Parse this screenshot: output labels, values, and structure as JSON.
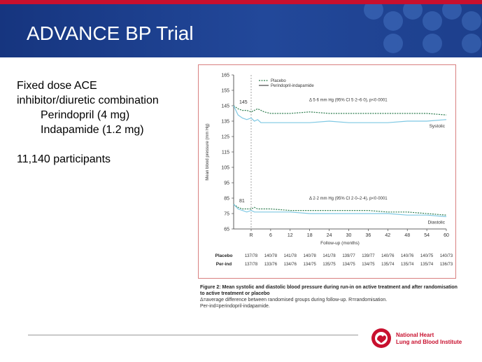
{
  "slide": {
    "title": "ADVANCE BP Trial",
    "bullets": [
      "Fixed dose ACE",
      "inhibitor/diuretic combination",
      "Perindopril (4 mg)",
      "Indapamide (1.2 mg)",
      "11,140 participants"
    ]
  },
  "chart_data": {
    "type": "line",
    "ylabel": "Mean blood pressure (mm Hg)",
    "xlabel": "Follow-up (months)",
    "ylim": [
      65,
      165
    ],
    "yticks": [
      65,
      75,
      85,
      95,
      105,
      115,
      125,
      135,
      145,
      155,
      165
    ],
    "xticks": [
      "R",
      "6",
      "12",
      "18",
      "24",
      "30",
      "36",
      "42",
      "48",
      "54",
      "60"
    ],
    "legend": [
      "Placebo",
      "Perindopril-indapamide"
    ],
    "start_labels": {
      "systolic": "145",
      "diastolic": "81"
    },
    "annotations": {
      "systolic_diff": "Δ 5·6 mm Hg (95% CI 5·2–6·0), p<0·0001",
      "diastolic_diff": "Δ 2·2 mm Hg (95% CI 2·0–2·4), p<0·0001",
      "systolic_label": "Systolic",
      "diastolic_label": "Diastolic"
    },
    "series": [
      {
        "name": "Placebo",
        "group": "Systolic",
        "x": [
          -4,
          -3,
          -2,
          -1,
          0,
          1,
          2,
          3,
          4,
          6,
          12,
          18,
          24,
          30,
          36,
          42,
          48,
          54,
          60
        ],
        "values": [
          145,
          143,
          142,
          142,
          141,
          142,
          143,
          142,
          141,
          140,
          140,
          141,
          140,
          140,
          140,
          140,
          140,
          140,
          139
        ]
      },
      {
        "name": "Perindopril-indapamide",
        "group": "Systolic",
        "x": [
          -4,
          -3,
          -2,
          -1,
          0,
          1,
          2,
          3,
          4,
          6,
          12,
          18,
          24,
          30,
          36,
          42,
          48,
          54,
          60
        ],
        "values": [
          145,
          139,
          137,
          136,
          137,
          135,
          136,
          134,
          134,
          134,
          134,
          134,
          135,
          134,
          134,
          134,
          135,
          135,
          136
        ]
      },
      {
        "name": "Placebo",
        "group": "Diastolic",
        "x": [
          -4,
          -3,
          -2,
          -1,
          0,
          1,
          2,
          3,
          4,
          6,
          12,
          18,
          24,
          30,
          36,
          42,
          48,
          54,
          60
        ],
        "values": [
          81,
          79,
          78,
          78,
          78,
          79,
          78,
          78,
          78,
          78,
          77,
          77,
          77,
          77,
          77,
          76,
          76,
          75,
          74
        ]
      },
      {
        "name": "Perindopril-indapamide",
        "group": "Diastolic",
        "x": [
          -4,
          -3,
          -2,
          -1,
          0,
          1,
          2,
          3,
          4,
          6,
          12,
          18,
          24,
          30,
          36,
          42,
          48,
          54,
          60
        ],
        "values": [
          81,
          78,
          77,
          76,
          77,
          76,
          76,
          76,
          76,
          76,
          76,
          75,
          75,
          75,
          75,
          75,
          74,
          74,
          73
        ]
      }
    ],
    "table": {
      "rows": [
        {
          "label": "Placebo",
          "values": [
            "137/78",
            "140/78",
            "141/78",
            "140/78",
            "141/78",
            "139/77",
            "139/77",
            "140/76",
            "140/76",
            "140/75",
            "140/73"
          ]
        },
        {
          "label": "Per-ind",
          "values": [
            "137/78",
            "133/76",
            "134/76",
            "134/75",
            "135/75",
            "134/75",
            "134/75",
            "135/74",
            "135/74",
            "135/74",
            "136/73"
          ]
        }
      ]
    },
    "colors": {
      "placebo": "#2e7d4f",
      "perind": "#7ec8e3",
      "frame": "#d98080"
    }
  },
  "caption": {
    "title": "Figure 2: Mean systolic and diastolic blood pressure during run-in on active treatment and after randomisation to active treatment or placebo",
    "line1": "Δ=average difference between randomised groups during follow-up. R=randomisation.",
    "line2": "Per-ind=perindopril-indapamide."
  },
  "logo": {
    "line1": "National Heart",
    "line2": "Lung and Blood Institute"
  }
}
